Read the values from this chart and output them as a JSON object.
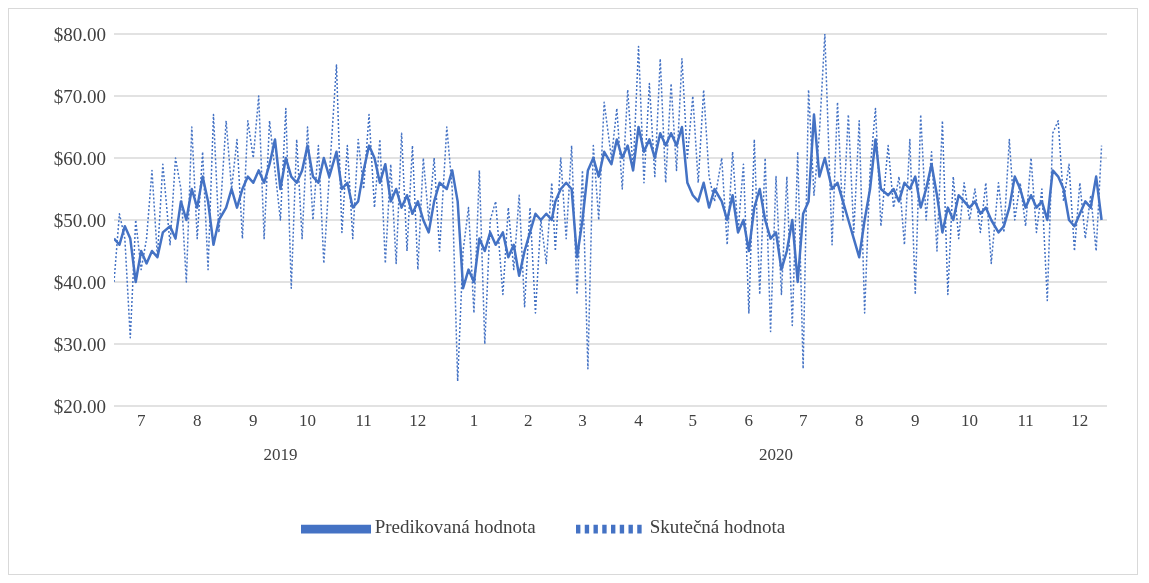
{
  "chart_data": {
    "type": "line",
    "x": [
      "2019-07-01",
      "2019-07-04",
      "2019-07-07",
      "2019-07-10",
      "2019-07-13",
      "2019-07-16",
      "2019-07-19",
      "2019-07-22",
      "2019-07-25",
      "2019-07-28",
      "2019-08-01",
      "2019-08-04",
      "2019-08-07",
      "2019-08-10",
      "2019-08-13",
      "2019-08-16",
      "2019-08-19",
      "2019-08-22",
      "2019-08-25",
      "2019-08-28",
      "2019-09-01",
      "2019-09-04",
      "2019-09-07",
      "2019-09-10",
      "2019-09-13",
      "2019-09-16",
      "2019-09-19",
      "2019-09-22",
      "2019-09-25",
      "2019-09-28",
      "2019-10-01",
      "2019-10-04",
      "2019-10-07",
      "2019-10-10",
      "2019-10-13",
      "2019-10-16",
      "2019-10-19",
      "2019-10-22",
      "2019-10-25",
      "2019-10-28",
      "2019-11-01",
      "2019-11-04",
      "2019-11-07",
      "2019-11-10",
      "2019-11-13",
      "2019-11-16",
      "2019-11-19",
      "2019-11-22",
      "2019-11-25",
      "2019-11-28",
      "2019-12-01",
      "2019-12-04",
      "2019-12-07",
      "2019-12-10",
      "2019-12-13",
      "2019-12-16",
      "2019-12-19",
      "2019-12-22",
      "2019-12-25",
      "2019-12-28",
      "2020-01-01",
      "2020-01-04",
      "2020-01-07",
      "2020-01-10",
      "2020-01-13",
      "2020-01-16",
      "2020-01-19",
      "2020-01-22",
      "2020-01-25",
      "2020-01-28",
      "2020-02-01",
      "2020-02-04",
      "2020-02-07",
      "2020-02-10",
      "2020-02-13",
      "2020-02-16",
      "2020-02-19",
      "2020-02-22",
      "2020-02-25",
      "2020-02-28",
      "2020-03-01",
      "2020-03-04",
      "2020-03-07",
      "2020-03-10",
      "2020-03-13",
      "2020-03-16",
      "2020-03-19",
      "2020-03-22",
      "2020-03-25",
      "2020-03-28",
      "2020-04-01",
      "2020-04-04",
      "2020-04-07",
      "2020-04-10",
      "2020-04-13",
      "2020-04-16",
      "2020-04-19",
      "2020-04-22",
      "2020-04-25",
      "2020-04-28",
      "2020-05-01",
      "2020-05-04",
      "2020-05-07",
      "2020-05-10",
      "2020-05-13",
      "2020-05-16",
      "2020-05-19",
      "2020-05-22",
      "2020-05-25",
      "2020-05-28",
      "2020-06-01",
      "2020-06-04",
      "2020-06-07",
      "2020-06-10",
      "2020-06-13",
      "2020-06-16",
      "2020-06-19",
      "2020-06-22",
      "2020-06-25",
      "2020-06-28",
      "2020-07-01",
      "2020-07-04",
      "2020-07-07",
      "2020-07-10",
      "2020-07-13",
      "2020-07-16",
      "2020-07-19",
      "2020-07-22",
      "2020-07-25",
      "2020-07-28",
      "2020-08-01",
      "2020-08-04",
      "2020-08-07",
      "2020-08-10",
      "2020-08-13",
      "2020-08-16",
      "2020-08-19",
      "2020-08-22",
      "2020-08-25",
      "2020-08-28",
      "2020-09-01",
      "2020-09-04",
      "2020-09-07",
      "2020-09-10",
      "2020-09-13",
      "2020-09-16",
      "2020-09-19",
      "2020-09-22",
      "2020-09-25",
      "2020-09-28",
      "2020-10-01",
      "2020-10-04",
      "2020-10-07",
      "2020-10-10",
      "2020-10-13",
      "2020-10-16",
      "2020-10-19",
      "2020-10-22",
      "2020-10-25",
      "2020-10-28",
      "2020-11-01",
      "2020-11-04",
      "2020-11-07",
      "2020-11-10",
      "2020-11-13",
      "2020-11-16",
      "2020-11-19",
      "2020-11-22",
      "2020-11-25",
      "2020-11-28",
      "2020-12-01",
      "2020-12-04",
      "2020-12-07",
      "2020-12-10",
      "2020-12-13",
      "2020-12-16",
      "2020-12-19",
      "2020-12-22",
      "2020-12-25",
      "2020-12-28"
    ],
    "series": [
      {
        "name": "Skutečná hodnota",
        "color": "#4472c4",
        "line_style": "dotted",
        "values": [
          40,
          51,
          47,
          31,
          50,
          42,
          47,
          58,
          44,
          59,
          46,
          60,
          55,
          40,
          65,
          47,
          61,
          42,
          67,
          48,
          66,
          55,
          63,
          47,
          66,
          60,
          70,
          47,
          66,
          58,
          50,
          68,
          39,
          63,
          47,
          65,
          50,
          62,
          43,
          57,
          75,
          48,
          62,
          47,
          63,
          55,
          67,
          52,
          63,
          43,
          59,
          43,
          64,
          45,
          62,
          42,
          60,
          50,
          60,
          45,
          65,
          55,
          24,
          45,
          52,
          35,
          58,
          30,
          50,
          53,
          38,
          52,
          42,
          54,
          36,
          52,
          35,
          50,
          43,
          56,
          45,
          60,
          47,
          62,
          38,
          58,
          26,
          62,
          50,
          69,
          60,
          68,
          55,
          71,
          58,
          78,
          56,
          72,
          57,
          76,
          56,
          72,
          58,
          76,
          60,
          70,
          56,
          71,
          57,
          53,
          60,
          46,
          61,
          48,
          59,
          35,
          63,
          38,
          60,
          32,
          57,
          38,
          57,
          33,
          61,
          26,
          71,
          54,
          64,
          80,
          46,
          69,
          50,
          67,
          48,
          66,
          35,
          58,
          68,
          49,
          62,
          52,
          57,
          46,
          63,
          38,
          67,
          50,
          61,
          45,
          66,
          38,
          57,
          47,
          56,
          50,
          55,
          48,
          56,
          43,
          56,
          48,
          63,
          50,
          56,
          49,
          60,
          48,
          55,
          37,
          64,
          66,
          53,
          59,
          45,
          56,
          47,
          54,
          45,
          62
        ]
      },
      {
        "name": "Predikovaná hodnota",
        "color": "#4472c4",
        "line_style": "solid",
        "values": [
          47,
          46,
          49,
          47,
          40,
          45,
          43,
          45,
          44,
          48,
          49,
          47,
          53,
          50,
          55,
          52,
          57,
          53,
          46,
          50,
          52,
          55,
          52,
          55,
          57,
          56,
          58,
          56,
          59,
          63,
          55,
          60,
          57,
          56,
          58,
          62,
          57,
          56,
          60,
          57,
          61,
          55,
          56,
          52,
          53,
          58,
          62,
          60,
          56,
          59,
          53,
          55,
          52,
          54,
          51,
          53,
          50,
          48,
          53,
          56,
          55,
          58,
          53,
          39,
          42,
          40,
          47,
          45,
          48,
          46,
          48,
          44,
          46,
          41,
          45,
          48,
          51,
          50,
          51,
          50,
          53,
          55,
          56,
          55,
          44,
          50,
          58,
          60,
          57,
          61,
          59,
          63,
          60,
          62,
          58,
          65,
          61,
          63,
          60,
          64,
          62,
          64,
          62,
          65,
          56,
          54,
          53,
          56,
          52,
          55,
          53,
          50,
          54,
          48,
          50,
          45,
          52,
          55,
          50,
          47,
          48,
          42,
          45,
          50,
          40,
          51,
          53,
          67,
          57,
          60,
          55,
          56,
          53,
          50,
          47,
          44,
          50,
          55,
          63,
          55,
          54,
          55,
          53,
          56,
          55,
          57,
          52,
          55,
          59,
          54,
          48,
          52,
          50,
          54,
          53,
          52,
          53,
          51,
          52,
          50,
          48,
          49,
          52,
          57,
          55,
          52,
          54,
          52,
          53,
          50,
          58,
          57,
          55,
          50,
          49,
          51,
          53,
          52,
          57,
          50
        ]
      }
    ],
    "xlim": [
      "2019-07-01",
      "2020-12-31"
    ],
    "xticks": [
      {
        "value": "2019-07-16",
        "label": "7"
      },
      {
        "value": "2019-08-16",
        "label": "8"
      },
      {
        "value": "2019-09-16",
        "label": "9"
      },
      {
        "value": "2019-10-16",
        "label": "10"
      },
      {
        "value": "2019-11-16",
        "label": "11"
      },
      {
        "value": "2019-12-16",
        "label": "12"
      },
      {
        "value": "2020-01-16",
        "label": "1"
      },
      {
        "value": "2020-02-15",
        "label": "2"
      },
      {
        "value": "2020-03-16",
        "label": "3"
      },
      {
        "value": "2020-04-16",
        "label": "4"
      },
      {
        "value": "2020-05-16",
        "label": "5"
      },
      {
        "value": "2020-06-16",
        "label": "6"
      },
      {
        "value": "2020-07-16",
        "label": "7"
      },
      {
        "value": "2020-08-16",
        "label": "8"
      },
      {
        "value": "2020-09-16",
        "label": "9"
      },
      {
        "value": "2020-10-16",
        "label": "10"
      },
      {
        "value": "2020-11-16",
        "label": "11"
      },
      {
        "value": "2020-12-16",
        "label": "12"
      }
    ],
    "x2lim": [
      "2019-07-01",
      "2020-12-31"
    ],
    "x2ticks": [
      {
        "value": "2019-10-01",
        "label": "2019"
      },
      {
        "value": "2020-07-01",
        "label": "2020"
      }
    ],
    "ylim": [
      20,
      80
    ],
    "yticks": [
      {
        "value": 20,
        "label": "$20.00"
      },
      {
        "value": 30,
        "label": "$30.00"
      },
      {
        "value": 40,
        "label": "$40.00"
      },
      {
        "value": 50,
        "label": "$50.00"
      },
      {
        "value": 60,
        "label": "$60.00"
      },
      {
        "value": 70,
        "label": "$70.00"
      },
      {
        "value": 80,
        "label": "$80.00"
      }
    ],
    "grid": "y",
    "legend": "bottom"
  }
}
